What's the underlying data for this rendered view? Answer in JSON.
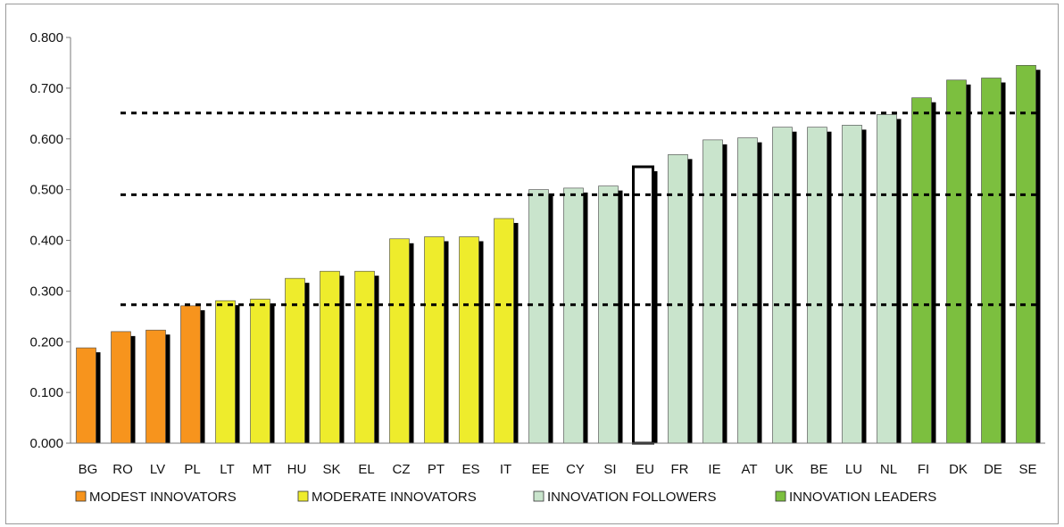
{
  "chart_data": {
    "type": "bar",
    "title": "",
    "xlabel": "",
    "ylabel": "",
    "ylim": [
      0,
      0.8
    ],
    "ytick_labels": [
      "0.000",
      "0.100",
      "0.200",
      "0.300",
      "0.400",
      "0.500",
      "0.600",
      "0.700",
      "0.800"
    ],
    "categories": [
      "BG",
      "RO",
      "LV",
      "PL",
      "LT",
      "MT",
      "HU",
      "SK",
      "EL",
      "CZ",
      "PT",
      "ES",
      "IT",
      "EE",
      "CY",
      "SI",
      "EU",
      "FR",
      "IE",
      "AT",
      "UK",
      "BE",
      "LU",
      "NL",
      "FI",
      "DK",
      "DE",
      "SE"
    ],
    "values": [
      0.188,
      0.22,
      0.223,
      0.271,
      0.281,
      0.284,
      0.325,
      0.339,
      0.339,
      0.403,
      0.407,
      0.407,
      0.443,
      0.5,
      0.503,
      0.507,
      0.545,
      0.569,
      0.598,
      0.602,
      0.623,
      0.623,
      0.627,
      0.648,
      0.681,
      0.716,
      0.72,
      0.745
    ],
    "groups": [
      "modest",
      "modest",
      "modest",
      "modest",
      "moderate",
      "moderate",
      "moderate",
      "moderate",
      "moderate",
      "moderate",
      "moderate",
      "moderate",
      "moderate",
      "followers",
      "followers",
      "followers",
      "eu",
      "followers",
      "followers",
      "followers",
      "followers",
      "followers",
      "followers",
      "followers",
      "leaders",
      "leaders",
      "leaders",
      "leaders"
    ],
    "thresholds": [
      0.273,
      0.49,
      0.651
    ],
    "grid": false,
    "legend_position": "bottom",
    "legend": [
      {
        "key": "modest",
        "label": "MODEST INNOVATORS",
        "color": "#f7941d"
      },
      {
        "key": "moderate",
        "label": "MODERATE INNOVATORS",
        "color": "#eeec2c"
      },
      {
        "key": "followers",
        "label": "INNOVATION FOLLOWERS",
        "color": "#c9e4cc"
      },
      {
        "key": "leaders",
        "label": "INNOVATION LEADERS",
        "color": "#7cbf3f"
      }
    ],
    "eu_color": "#ffffff"
  }
}
